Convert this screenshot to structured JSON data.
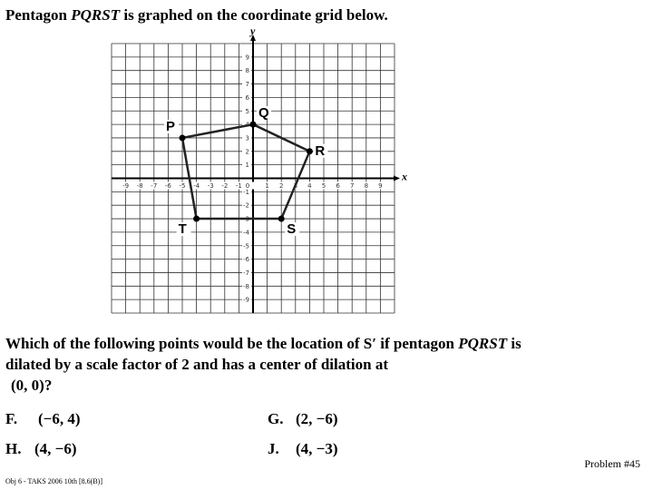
{
  "title": [
    "Pentagon ",
    "PQRST",
    " is graphed on the coordinate grid below."
  ],
  "grid": {
    "xlim": [
      -10,
      10
    ],
    "ylim": [
      -10,
      10
    ],
    "xlabel": "x",
    "ylabel": "y",
    "xticks": [
      -9,
      -8,
      -7,
      -6,
      -5,
      -4,
      -3,
      -2,
      -1,
      0,
      1,
      2,
      3,
      4,
      5,
      6,
      7,
      8,
      9
    ],
    "yticks": [
      -9,
      -8,
      -7,
      -6,
      -5,
      -4,
      -3,
      -2,
      -1,
      1,
      2,
      3,
      4,
      5,
      6,
      7,
      8,
      9
    ],
    "points": [
      {
        "name": "P",
        "x": -5,
        "y": 3
      },
      {
        "name": "Q",
        "x": 0,
        "y": 4
      },
      {
        "name": "R",
        "x": 4,
        "y": 2
      },
      {
        "name": "S",
        "x": 2,
        "y": -3
      },
      {
        "name": "T",
        "x": -4,
        "y": -3
      }
    ]
  },
  "question": {
    "line1": [
      "Which of the following points would be the location of S′ if pentagon ",
      "PQRST",
      " is"
    ],
    "line2": "dilated by a scale factor of 2 and has a center of dilation at",
    "line3": "(0, 0)?"
  },
  "choices": [
    {
      "letter": "F.",
      "answer": "(−6, 4)"
    },
    {
      "letter": "G.",
      "answer": "(2, −6)"
    },
    {
      "letter": "H.",
      "answer": "(4, −6)"
    },
    {
      "letter": "J.",
      "answer": "(4, −3)"
    }
  ],
  "footer": {
    "left": "Obj 6 - TAKS 2006 10th [8.6(B)]",
    "right": "Problem #45"
  }
}
